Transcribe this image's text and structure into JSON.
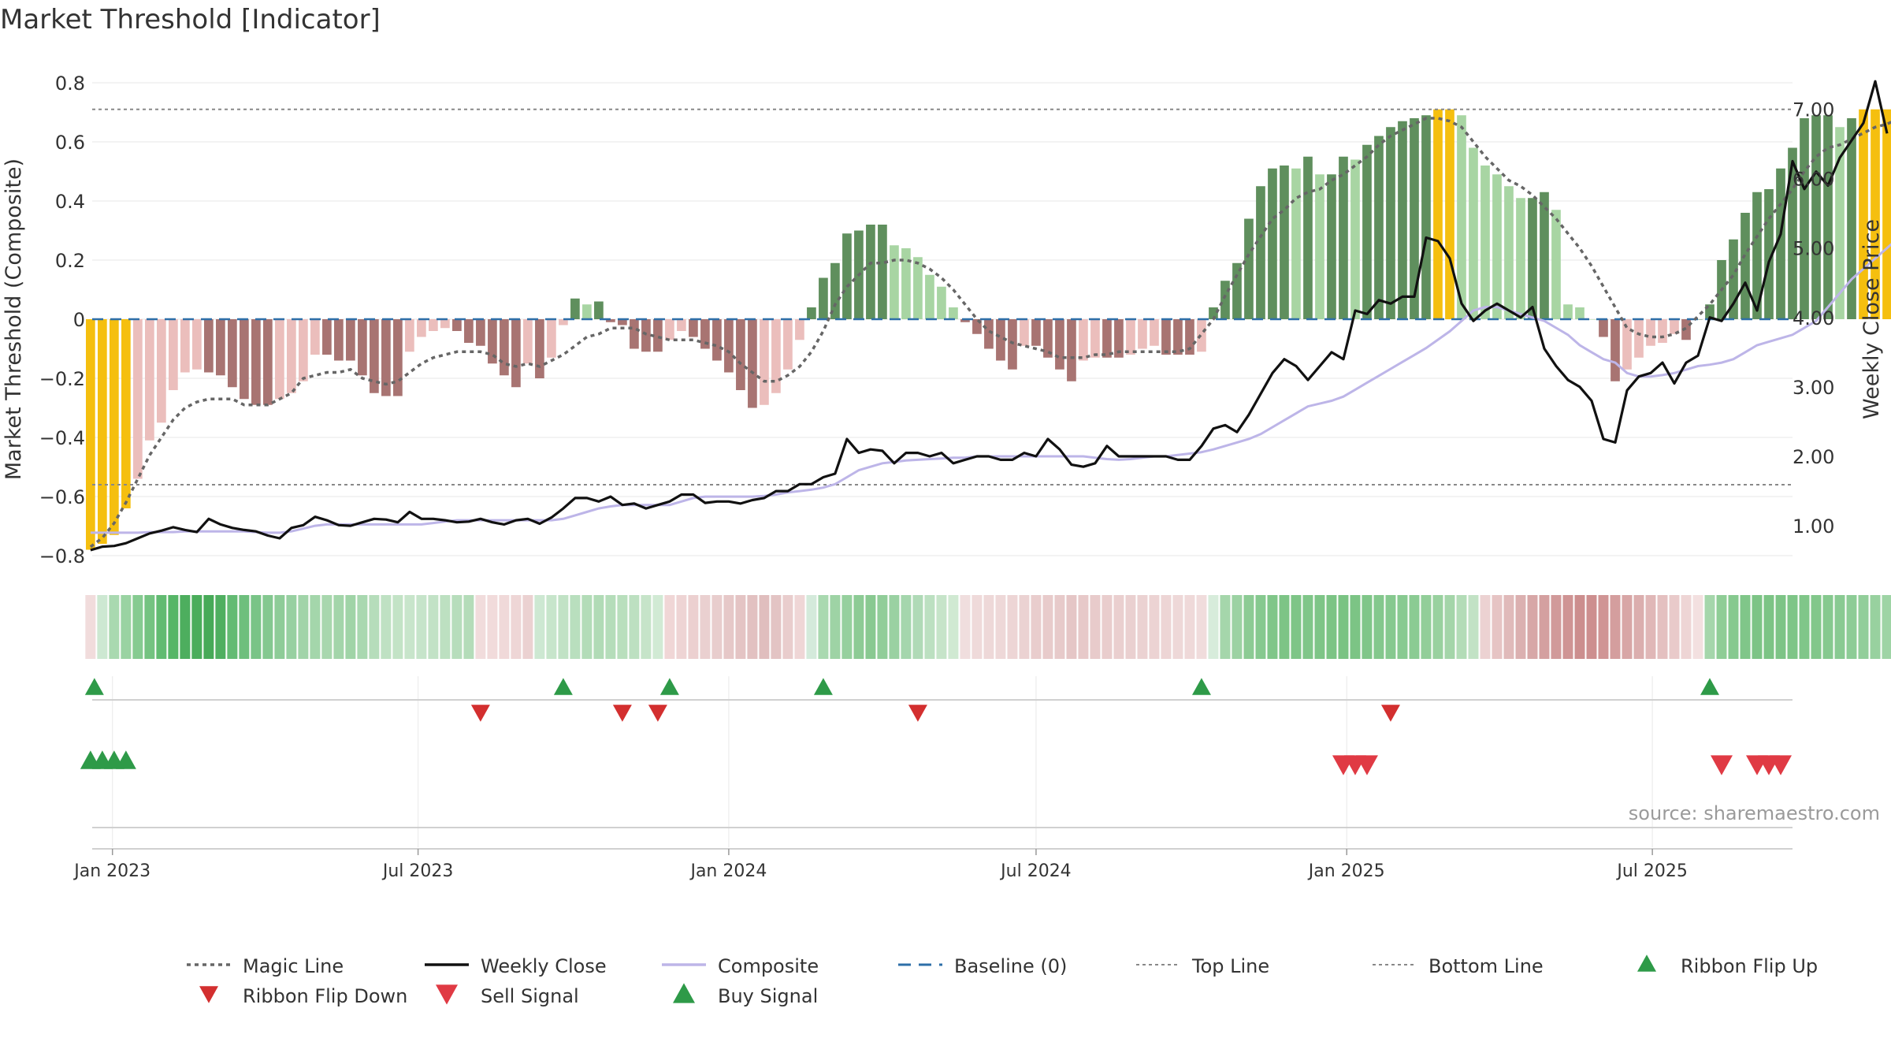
{
  "chart_data": {
    "type": "bar",
    "title": "Market Threshold [Indicator]",
    "ylabel": "Market Threshold (Composite)",
    "y2label": "Weekly Close Price",
    "ylim": [
      -0.84,
      0.84
    ],
    "y2lim": [
      0.4,
      7.55
    ],
    "yticks": [
      {
        "v": 0.8,
        "label": "0.8"
      },
      {
        "v": 0.6,
        "label": "0.6"
      },
      {
        "v": 0.4,
        "label": "0.4"
      },
      {
        "v": 0.2,
        "label": "0.2"
      },
      {
        "v": 0,
        "label": "0"
      },
      {
        "v": -0.2,
        "label": "−0.2"
      },
      {
        "v": -0.4,
        "label": "−0.4"
      },
      {
        "v": -0.6,
        "label": "−0.6"
      },
      {
        "v": -0.8,
        "label": "−0.8"
      }
    ],
    "y2ticks": [
      {
        "v": 7,
        "label": "7.00"
      },
      {
        "v": 6,
        "label": "6.00"
      },
      {
        "v": 5,
        "label": "5.00"
      },
      {
        "v": 4,
        "label": "4.00"
      },
      {
        "v": 3,
        "label": "3.00"
      },
      {
        "v": 2,
        "label": "2.00"
      },
      {
        "v": 1,
        "label": "1.00"
      }
    ],
    "xlim": [
      "2022-12-20",
      "2025-09-22"
    ],
    "xticks": [
      {
        "date": "2023-01-01",
        "label": "Jan 2023"
      },
      {
        "date": "2023-07-01",
        "label": "Jul 2023"
      },
      {
        "date": "2024-01-01",
        "label": "Jan 2024"
      },
      {
        "date": "2024-07-01",
        "label": "Jul 2024"
      },
      {
        "date": "2025-01-01",
        "label": "Jan 2025"
      },
      {
        "date": "2025-07-01",
        "label": "Jul 2025"
      }
    ],
    "start_date": "2022-12-19",
    "top_line": 0.71,
    "bottom_line": -0.56,
    "composite_bars": [
      -0.78,
      -0.76,
      -0.73,
      -0.64,
      -0.54,
      -0.41,
      -0.35,
      -0.24,
      -0.18,
      -0.17,
      -0.18,
      -0.19,
      -0.23,
      -0.27,
      -0.29,
      -0.29,
      -0.27,
      -0.25,
      -0.21,
      -0.12,
      -0.12,
      -0.14,
      -0.14,
      -0.19,
      -0.25,
      -0.26,
      -0.26,
      -0.11,
      -0.06,
      -0.04,
      -0.03,
      -0.04,
      -0.08,
      -0.09,
      -0.15,
      -0.19,
      -0.23,
      -0.15,
      -0.2,
      -0.13,
      -0.02,
      0.07,
      0.05,
      0.06,
      -0.01,
      -0.02,
      -0.1,
      -0.11,
      -0.11,
      -0.07,
      -0.04,
      -0.06,
      -0.1,
      -0.14,
      -0.18,
      -0.24,
      -0.3,
      -0.29,
      -0.25,
      -0.17,
      -0.07,
      0.04,
      0.14,
      0.19,
      0.29,
      0.3,
      0.32,
      0.32,
      0.25,
      0.24,
      0.21,
      0.15,
      0.11,
      0.04,
      -0.01,
      -0.05,
      -0.1,
      -0.14,
      -0.17,
      -0.09,
      -0.09,
      -0.13,
      -0.17,
      -0.21,
      -0.14,
      -0.13,
      -0.13,
      -0.13,
      -0.12,
      -0.1,
      -0.09,
      -0.12,
      -0.12,
      -0.12,
      -0.11,
      0.04,
      0.13,
      0.19,
      0.34,
      0.45,
      0.51,
      0.52,
      0.51,
      0.55,
      0.49,
      0.49,
      0.55,
      0.54,
      0.59,
      0.62,
      0.65,
      0.67,
      0.68,
      0.69,
      0.71,
      0.71,
      0.69,
      0.58,
      0.52,
      0.49,
      0.45,
      0.41,
      0.41,
      0.43,
      0.37,
      0.05,
      0.04,
      0.0,
      -0.06,
      -0.21,
      -0.17,
      -0.13,
      -0.09,
      -0.08,
      -0.05,
      -0.07,
      0.0,
      0.05,
      0.2,
      0.27,
      0.36,
      0.43,
      0.44,
      0.51,
      0.58,
      0.68,
      0.69,
      0.69,
      0.65,
      0.68,
      0.71,
      0.71,
      0.71,
      0.69
    ],
    "weekly_close": [
      0.65,
      0.7,
      0.71,
      0.75,
      0.82,
      0.89,
      0.93,
      0.98,
      0.94,
      0.91,
      1.1,
      1.02,
      0.97,
      0.94,
      0.92,
      0.86,
      0.82,
      0.97,
      1.01,
      1.13,
      1.08,
      1.01,
      1.0,
      1.05,
      1.1,
      1.09,
      1.05,
      1.2,
      1.1,
      1.1,
      1.08,
      1.05,
      1.06,
      1.1,
      1.05,
      1.02,
      1.08,
      1.1,
      1.03,
      1.12,
      1.25,
      1.4,
      1.4,
      1.35,
      1.42,
      1.3,
      1.32,
      1.25,
      1.3,
      1.35,
      1.45,
      1.45,
      1.33,
      1.35,
      1.35,
      1.32,
      1.37,
      1.4,
      1.5,
      1.5,
      1.6,
      1.6,
      1.7,
      1.75,
      2.25,
      2.05,
      2.1,
      2.08,
      1.9,
      2.05,
      2.05,
      2.0,
      2.05,
      1.9,
      1.95,
      2.0,
      2.0,
      1.95,
      1.95,
      2.05,
      2.0,
      2.25,
      2.1,
      1.88,
      1.85,
      1.9,
      2.15,
      2.0,
      2.0,
      2.0,
      2.0,
      2.0,
      1.95,
      1.95,
      2.15,
      2.4,
      2.45,
      2.35,
      2.6,
      2.9,
      3.2,
      3.4,
      3.3,
      3.1,
      3.3,
      3.5,
      3.4,
      4.1,
      4.05,
      4.25,
      4.2,
      4.3,
      4.3,
      5.15,
      5.1,
      4.85,
      4.2,
      3.95,
      4.1,
      4.2,
      4.1,
      4.0,
      4.15,
      3.55,
      3.3,
      3.1,
      3.0,
      2.8,
      2.25,
      2.2,
      2.95,
      3.15,
      3.2,
      3.35,
      3.05,
      3.35,
      3.45,
      4.0,
      3.95,
      4.2,
      4.5,
      4.1,
      4.8,
      5.2,
      6.25,
      5.85,
      6.1,
      5.9,
      6.3,
      6.55,
      6.8,
      7.4,
      6.65
    ],
    "composite_line": [
      0.9,
      0.9,
      0.9,
      0.9,
      0.9,
      0.91,
      0.91,
      0.91,
      0.92,
      0.92,
      0.92,
      0.92,
      0.92,
      0.92,
      0.91,
      0.9,
      0.9,
      0.92,
      0.96,
      1.0,
      1.02,
      1.02,
      1.02,
      1.02,
      1.02,
      1.02,
      1.02,
      1.02,
      1.02,
      1.04,
      1.06,
      1.08,
      1.08,
      1.08,
      1.08,
      1.08,
      1.08,
      1.08,
      1.08,
      1.08,
      1.1,
      1.15,
      1.2,
      1.25,
      1.28,
      1.3,
      1.3,
      1.3,
      1.3,
      1.3,
      1.35,
      1.4,
      1.42,
      1.42,
      1.42,
      1.42,
      1.42,
      1.43,
      1.45,
      1.48,
      1.5,
      1.52,
      1.55,
      1.6,
      1.7,
      1.8,
      1.85,
      1.9,
      1.92,
      1.94,
      1.95,
      1.96,
      1.97,
      1.98,
      1.98,
      2.0,
      2.0,
      2.0,
      2.0,
      2.0,
      2.0,
      2.0,
      2.0,
      2.0,
      2.0,
      1.98,
      1.96,
      1.95,
      1.96,
      1.98,
      2.0,
      2.0,
      2.02,
      2.04,
      2.06,
      2.1,
      2.15,
      2.2,
      2.25,
      2.32,
      2.42,
      2.52,
      2.62,
      2.72,
      2.76,
      2.8,
      2.86,
      2.96,
      3.06,
      3.16,
      3.26,
      3.36,
      3.46,
      3.56,
      3.68,
      3.8,
      3.95,
      4.1,
      4.15,
      4.15,
      4.1,
      4.05,
      4.0,
      3.95,
      3.85,
      3.75,
      3.6,
      3.5,
      3.4,
      3.35,
      3.2,
      3.15,
      3.15,
      3.17,
      3.2,
      3.25,
      3.3,
      3.32,
      3.35,
      3.4,
      3.5,
      3.6,
      3.65,
      3.7,
      3.75,
      3.85,
      3.95,
      4.15,
      4.35,
      4.55,
      4.7,
      4.85,
      5.0,
      5.15,
      5.3,
      5.45,
      5.6
    ],
    "magic_line": [
      -0.77,
      -0.74,
      -0.69,
      -0.62,
      -0.54,
      -0.46,
      -0.4,
      -0.34,
      -0.3,
      -0.28,
      -0.27,
      -0.27,
      -0.27,
      -0.29,
      -0.29,
      -0.29,
      -0.27,
      -0.25,
      -0.2,
      -0.19,
      -0.18,
      -0.18,
      -0.17,
      -0.2,
      -0.21,
      -0.22,
      -0.21,
      -0.18,
      -0.15,
      -0.13,
      -0.12,
      -0.11,
      -0.11,
      -0.11,
      -0.12,
      -0.15,
      -0.16,
      -0.15,
      -0.16,
      -0.14,
      -0.12,
      -0.09,
      -0.06,
      -0.05,
      -0.03,
      -0.03,
      -0.03,
      -0.05,
      -0.06,
      -0.07,
      -0.07,
      -0.07,
      -0.08,
      -0.09,
      -0.11,
      -0.15,
      -0.18,
      -0.21,
      -0.21,
      -0.19,
      -0.16,
      -0.11,
      -0.04,
      0.05,
      0.11,
      0.15,
      0.19,
      0.19,
      0.2,
      0.2,
      0.19,
      0.17,
      0.14,
      0.1,
      0.05,
      0.0,
      -0.04,
      -0.06,
      -0.08,
      -0.09,
      -0.1,
      -0.11,
      -0.13,
      -0.13,
      -0.13,
      -0.12,
      -0.12,
      -0.11,
      -0.11,
      -0.11,
      -0.11,
      -0.11,
      -0.11,
      -0.1,
      -0.05,
      0.0,
      0.08,
      0.15,
      0.22,
      0.28,
      0.34,
      0.37,
      0.41,
      0.43,
      0.44,
      0.47,
      0.49,
      0.52,
      0.55,
      0.59,
      0.62,
      0.64,
      0.66,
      0.68,
      0.68,
      0.67,
      0.65,
      0.6,
      0.55,
      0.51,
      0.47,
      0.45,
      0.42,
      0.38,
      0.34,
      0.29,
      0.24,
      0.18,
      0.11,
      0.04,
      -0.03,
      -0.05,
      -0.06,
      -0.06,
      -0.05,
      -0.03,
      0.01,
      0.05,
      0.1,
      0.15,
      0.22,
      0.28,
      0.34,
      0.39,
      0.44,
      0.5,
      0.55,
      0.58,
      0.59,
      0.61,
      0.63,
      0.65,
      0.66,
      0.68,
      0.67
    ],
    "ribbon_colors": [
      "#f1dcdc",
      "#cde8d2",
      "#a9d9b0",
      "#9ad3a2",
      "#86cb91",
      "#74c381",
      "#61bb71",
      "#56b667",
      "#4dae5e",
      "#4aad5b",
      "#47aa58",
      "#4faf60",
      "#63bb73",
      "#6ebf7d",
      "#79c487",
      "#84c890",
      "#8ecc98",
      "#97d0a1",
      "#a1d4a9",
      "#a4d6ab",
      "#a8d7ae",
      "#a3d5aa",
      "#a0d4a7",
      "#a9d8b0",
      "#b6ddbb",
      "#bfe1c3",
      "#c3e3c6",
      "#c8e5cb",
      "#c6e4ca",
      "#c2e2c6",
      "#bde0c1",
      "#b7ddbc",
      "#b4dcb9",
      "#f1dcdc",
      "#f1dbdb",
      "#f0d9d9",
      "#eed6d6",
      "#ebd1d1",
      "#cde8d2",
      "#c7e5cb",
      "#c1e2c5",
      "#b9dfbe",
      "#b3dcb8",
      "#b1dbb6",
      "#b5ddba",
      "#b9dfbd",
      "#bde0c1",
      "#c6e4c9",
      "#d1ead4",
      "#f0d6d6",
      "#eed4d4",
      "#ecd0d0",
      "#ead0d0",
      "#e8cdcd",
      "#e6c8c8",
      "#e4c4c4",
      "#e2c1c1",
      "#e0bebe",
      "#e3c4c4",
      "#e9cdcd",
      "#efd6d6",
      "#d4eadb",
      "#a9d9b0",
      "#9ed3a5",
      "#96d09e",
      "#8dcb95",
      "#89c991",
      "#91cd99",
      "#9ad1a2",
      "#a5d6ad",
      "#b0dab7",
      "#bce0c1",
      "#c6e4c9",
      "#d0e9d2",
      "#f0dede",
      "#efdada",
      "#eed8d8",
      "#eed8d8",
      "#edd5d5",
      "#ebd2d2",
      "#e9cdcd",
      "#e8cbcb",
      "#e7caca",
      "#e5c6c6",
      "#e7c9c9",
      "#e8cbcb",
      "#e9cdcd",
      "#eacfcf",
      "#ead0d0",
      "#ebd2d2",
      "#ecd3d3",
      "#edd5d5",
      "#eed8d8",
      "#efd9d9",
      "#f0dcdc",
      "#d7ecdb",
      "#a5d6ab",
      "#9cd2a3",
      "#8ccb94",
      "#86c98f",
      "#80c689",
      "#7dc486",
      "#7ec587",
      "#80c689",
      "#7ec587",
      "#7cc485",
      "#7ac383",
      "#7cc485",
      "#80c689",
      "#84c88d",
      "#86c98f",
      "#88ca91",
      "#8bcb93",
      "#92ce99",
      "#99d19f",
      "#a4d5a9",
      "#b3dcb7",
      "#c2e2c5",
      "#ecd2d2",
      "#e6c4c4",
      "#e0baba",
      "#dbb0b0",
      "#d7a7a7",
      "#d4a0a0",
      "#d19a9a",
      "#cf9494",
      "#cc8e8e",
      "#cd8f8f",
      "#d09595",
      "#d49e9e",
      "#d8a6a6",
      "#dbaeae",
      "#e0b7b7",
      "#e4c0c0",
      "#e9caca",
      "#eed5d5",
      "#f3e0e0",
      "#a5d6ab",
      "#8fcd96",
      "#86c98f",
      "#80c689",
      "#7dc486",
      "#7cc485",
      "#7dc486",
      "#7ec587",
      "#80c689",
      "#82c78b",
      "#86c98f",
      "#89ca92",
      "#8dcc96",
      "#92ce9a",
      "#98d19f",
      "#9ed4a5",
      "#a4d6ab"
    ],
    "ribbon_flip_up_weeks": [
      0,
      40,
      49,
      62,
      94,
      137
    ],
    "ribbon_flip_down_weeks": [
      33,
      45,
      48,
      70,
      110
    ],
    "buy_signal_weeks": [
      0,
      1,
      2,
      3
    ],
    "sell_signal_weeks": [
      106,
      107,
      108,
      138,
      141,
      142,
      143
    ],
    "legend": [
      {
        "key": "magic",
        "label": "Magic Line"
      },
      {
        "key": "close",
        "label": "Weekly Close"
      },
      {
        "key": "composite",
        "label": "Composite"
      },
      {
        "key": "baseline",
        "label": "Baseline (0)"
      },
      {
        "key": "top",
        "label": "Top Line"
      },
      {
        "key": "bottom",
        "label": "Bottom Line"
      },
      {
        "key": "flipup",
        "label": "Ribbon Flip Up"
      },
      {
        "key": "flipdown",
        "label": "Ribbon Flip Down"
      },
      {
        "key": "sell",
        "label": "Sell Signal"
      },
      {
        "key": "buy",
        "label": "Buy Signal"
      }
    ],
    "colors": {
      "bar_extreme": "#f5bf0f",
      "bar_pos_dark": "#5f8f5d",
      "bar_pos_light": "#a8d5a3",
      "bar_neg_dark": "#a87472",
      "bar_neg_light": "#ebbebc",
      "magic": "#666666",
      "close": "#111111",
      "composite": "#bdb5e8",
      "baseline": "#2e6fa8",
      "ref_lines": "#888888",
      "flip_up": "#2e9a48",
      "flip_down": "#d32f2f",
      "buy": "#2e9a48",
      "sell": "#e03a44"
    },
    "source": "source: sharemaestro.com"
  }
}
